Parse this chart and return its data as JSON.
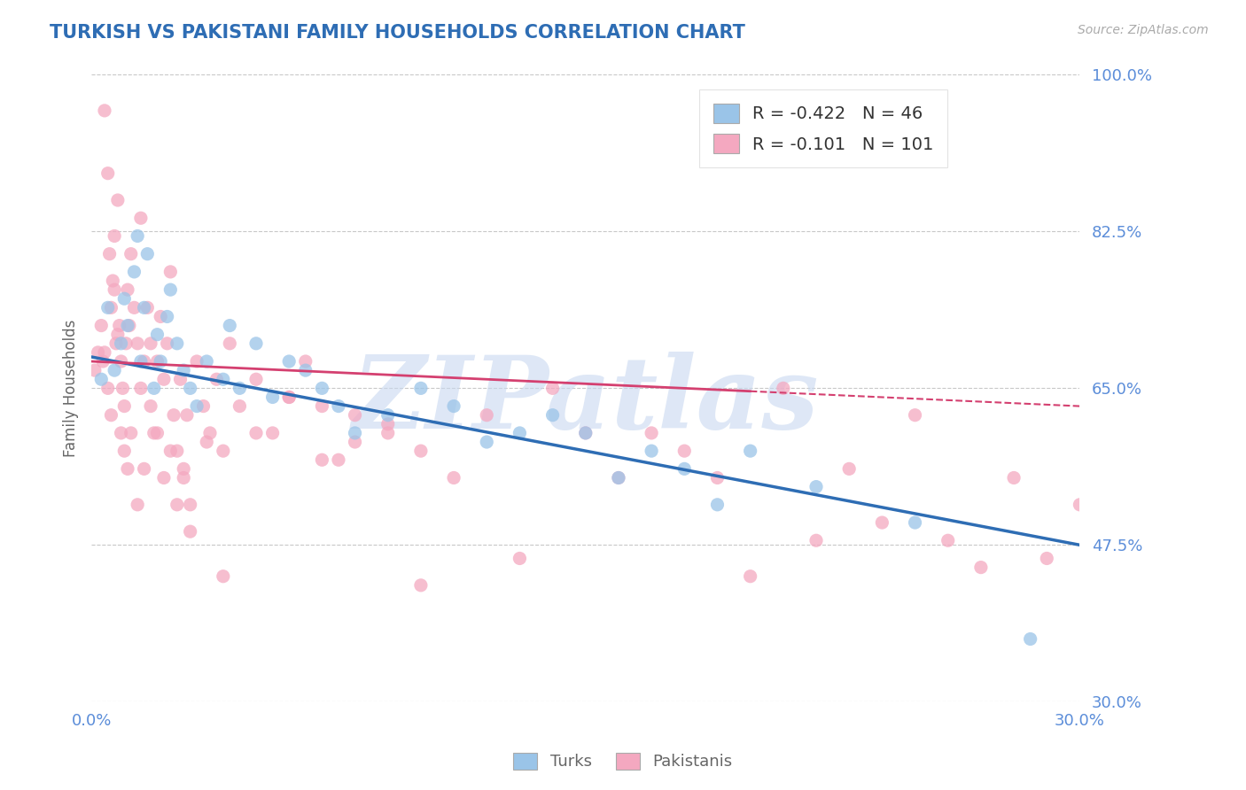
{
  "title": "TURKISH VS PAKISTANI FAMILY HOUSEHOLDS CORRELATION CHART",
  "source": "Source: ZipAtlas.com",
  "ylabel": "Family Households",
  "xmin": 0.0,
  "xmax": 30.0,
  "ymin": 30.0,
  "ymax": 100.0,
  "yticks": [
    100.0,
    82.5,
    65.0,
    47.5,
    30.0
  ],
  "xticks": [
    0.0,
    30.0
  ],
  "gridlines_y": [
    100.0,
    82.5,
    65.0,
    47.5,
    30.0
  ],
  "turks_R": -0.422,
  "turks_N": 46,
  "pakis_R": -0.101,
  "pakis_N": 101,
  "turks_color": "#9ac4e8",
  "pakis_color": "#f4a8c0",
  "turks_line_color": "#2e6db4",
  "pakis_line_color": "#d44070",
  "title_color": "#2e6db4",
  "axis_label_color": "#666666",
  "tick_color": "#5b8dd9",
  "watermark": "ZIPatlas",
  "watermark_color": "#c8d8f0",
  "background_color": "#ffffff",
  "turks_line_y0": 68.5,
  "turks_line_y1": 47.5,
  "pakis_line_y0": 68.0,
  "pakis_line_y1": 63.0,
  "turks_x": [
    0.3,
    0.5,
    0.7,
    0.9,
    1.0,
    1.1,
    1.3,
    1.4,
    1.5,
    1.6,
    1.7,
    1.9,
    2.0,
    2.1,
    2.3,
    2.4,
    2.6,
    2.8,
    3.0,
    3.2,
    3.5,
    4.0,
    4.2,
    4.5,
    5.0,
    5.5,
    6.0,
    6.5,
    7.0,
    7.5,
    8.0,
    9.0,
    10.0,
    11.0,
    12.0,
    13.0,
    14.0,
    15.0,
    16.0,
    17.0,
    18.0,
    19.0,
    20.0,
    22.0,
    25.0,
    28.5
  ],
  "turks_y": [
    66,
    74,
    67,
    70,
    75,
    72,
    78,
    82,
    68,
    74,
    80,
    65,
    71,
    68,
    73,
    76,
    70,
    67,
    65,
    63,
    68,
    66,
    72,
    65,
    70,
    64,
    68,
    67,
    65,
    63,
    60,
    62,
    65,
    63,
    59,
    60,
    62,
    60,
    55,
    58,
    56,
    52,
    58,
    54,
    50,
    37
  ],
  "pakis_x": [
    0.1,
    0.2,
    0.3,
    0.35,
    0.4,
    0.5,
    0.55,
    0.6,
    0.65,
    0.7,
    0.75,
    0.8,
    0.85,
    0.9,
    0.95,
    1.0,
    1.05,
    1.1,
    1.15,
    1.2,
    1.3,
    1.4,
    1.5,
    1.6,
    1.7,
    1.8,
    1.9,
    2.0,
    2.1,
    2.2,
    2.3,
    2.4,
    2.5,
    2.6,
    2.7,
    2.8,
    2.9,
    3.0,
    3.2,
    3.4,
    3.6,
    3.8,
    4.0,
    4.2,
    4.5,
    5.0,
    5.5,
    6.0,
    6.5,
    7.0,
    7.5,
    8.0,
    9.0,
    10.0,
    11.0,
    12.0,
    13.0,
    14.0,
    15.0,
    16.0,
    17.0,
    18.0,
    19.0,
    20.0,
    21.0,
    22.0,
    23.0,
    24.0,
    25.0,
    26.0,
    27.0,
    28.0,
    29.0,
    30.0,
    0.4,
    0.5,
    0.6,
    0.7,
    0.8,
    0.9,
    1.0,
    1.1,
    1.2,
    1.4,
    1.5,
    1.6,
    1.8,
    2.0,
    2.2,
    2.4,
    2.6,
    2.8,
    3.0,
    3.5,
    4.0,
    5.0,
    6.0,
    7.0,
    8.0,
    9.0,
    10.0
  ],
  "pakis_y": [
    67,
    69,
    72,
    68,
    96,
    89,
    80,
    74,
    77,
    82,
    70,
    86,
    72,
    68,
    65,
    63,
    70,
    76,
    72,
    80,
    74,
    70,
    84,
    68,
    74,
    63,
    60,
    68,
    73,
    66,
    70,
    78,
    62,
    58,
    66,
    55,
    62,
    52,
    68,
    63,
    60,
    66,
    58,
    70,
    63,
    66,
    60,
    64,
    68,
    63,
    57,
    62,
    60,
    58,
    55,
    62,
    46,
    65,
    60,
    55,
    60,
    58,
    55,
    44,
    65,
    48,
    56,
    50,
    62,
    48,
    45,
    55,
    46,
    52,
    69,
    65,
    62,
    76,
    71,
    60,
    58,
    56,
    60,
    52,
    65,
    56,
    70,
    60,
    55,
    58,
    52,
    56,
    49,
    59,
    44,
    60,
    64,
    57,
    59,
    61,
    43
  ]
}
